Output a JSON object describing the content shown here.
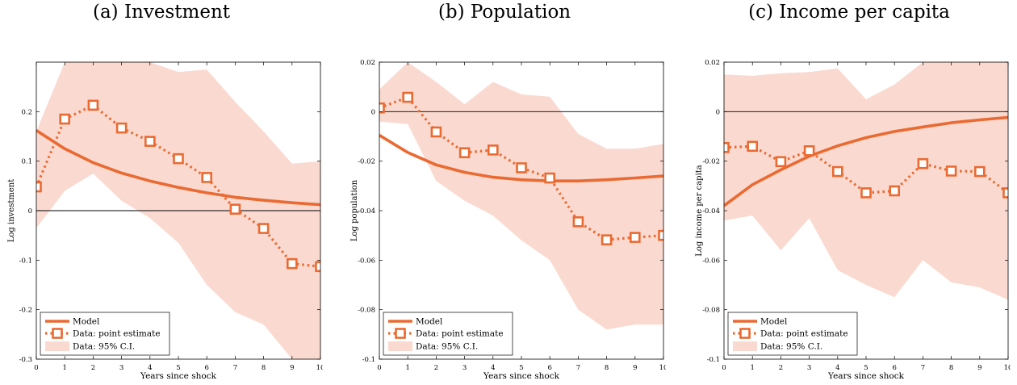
{
  "chart_data": [
    {
      "type": "line",
      "title": "(a) Investment",
      "xlabel": "Years since shock",
      "ylabel": "Log investment",
      "xlim": [
        0,
        10
      ],
      "ylim": [
        -0.3,
        0.3
      ],
      "x": [
        0,
        1,
        2,
        3,
        4,
        5,
        6,
        7,
        8,
        9,
        10
      ],
      "xticks": [
        "0",
        "1",
        "2",
        "3",
        "4",
        "5",
        "6",
        "7",
        "8",
        "9",
        "10"
      ],
      "yticks": [
        -0.3,
        -0.2,
        -0.1,
        0,
        0.1,
        0.2
      ],
      "ytick_labels": [
        "-0.3",
        "-0.2",
        "-0.1",
        "0",
        "0.1",
        "0.2"
      ],
      "series": [
        {
          "name": "Model",
          "style": "solid",
          "values": [
            0.162,
            0.125,
            0.097,
            0.076,
            0.06,
            0.047,
            0.036,
            0.027,
            0.021,
            0.016,
            0.012
          ]
        },
        {
          "name": "Data: point estimate",
          "style": "dotted-square",
          "values": [
            0.048,
            0.185,
            0.213,
            0.167,
            0.14,
            0.105,
            0.067,
            0.003,
            -0.036,
            -0.107,
            -0.113
          ]
        },
        {
          "name": "Data: 95% C.I.",
          "style": "band",
          "lower": [
            -0.035,
            0.04,
            0.075,
            0.02,
            -0.015,
            -0.065,
            -0.15,
            -0.205,
            -0.23,
            -0.3,
            -0.3
          ],
          "upper": [
            0.16,
            0.3,
            0.3,
            0.3,
            0.3,
            0.28,
            0.285,
            0.22,
            0.16,
            0.095,
            0.1
          ]
        }
      ],
      "legend_position": "bottom-left"
    },
    {
      "type": "line",
      "title": "(b) Population",
      "xlabel": "Years since shock",
      "ylabel": "Log population",
      "xlim": [
        0,
        10
      ],
      "ylim": [
        -0.1,
        0.02
      ],
      "x": [
        0,
        1,
        2,
        3,
        4,
        5,
        6,
        7,
        8,
        9,
        10
      ],
      "xticks": [
        "0",
        "1",
        "2",
        "3",
        "4",
        "5",
        "6",
        "7",
        "8",
        "9",
        "10"
      ],
      "yticks": [
        -0.1,
        -0.08,
        -0.06,
        -0.04,
        -0.02,
        0,
        0.02
      ],
      "ytick_labels": [
        "-0.1",
        "-0.08",
        "-0.06",
        "-0.04",
        "-0.02",
        "0",
        "0.02"
      ],
      "series": [
        {
          "name": "Model",
          "style": "solid",
          "values": [
            -0.0095,
            -0.0165,
            -0.0215,
            -0.0245,
            -0.0265,
            -0.0275,
            -0.028,
            -0.028,
            -0.0275,
            -0.0268,
            -0.026
          ]
        },
        {
          "name": "Data: point estimate",
          "style": "dotted-square",
          "values": [
            0.0015,
            0.0058,
            -0.0082,
            -0.0166,
            -0.0155,
            -0.0227,
            -0.0268,
            -0.0445,
            -0.0518,
            -0.0508,
            -0.05
          ]
        },
        {
          "name": "Data: 95% C.I.",
          "style": "band",
          "lower": [
            -0.004,
            -0.005,
            -0.028,
            -0.036,
            -0.042,
            -0.052,
            -0.06,
            -0.08,
            -0.088,
            -0.086,
            -0.086
          ],
          "upper": [
            0.009,
            0.02,
            0.012,
            0.003,
            0.012,
            0.007,
            0.006,
            -0.009,
            -0.015,
            -0.015,
            -0.013
          ]
        }
      ],
      "legend_position": "bottom-left"
    },
    {
      "type": "line",
      "title": "(c) Income per capita",
      "xlabel": "Years since shock",
      "ylabel": "Log income per capita",
      "xlim": [
        0,
        10
      ],
      "ylim": [
        -0.1,
        0.02
      ],
      "x": [
        0,
        1,
        2,
        3,
        4,
        5,
        6,
        7,
        8,
        9,
        10
      ],
      "xticks": [
        "0",
        "1",
        "2",
        "3",
        "4",
        "5",
        "6",
        "7",
        "8",
        "9",
        "10"
      ],
      "yticks": [
        -0.1,
        -0.08,
        -0.06,
        -0.04,
        -0.02,
        0,
        0.02
      ],
      "ytick_labels": [
        "-0.1",
        "-0.08",
        "-0.06",
        "-0.04",
        "-0.02",
        "0",
        "0.02"
      ],
      "series": [
        {
          "name": "Model",
          "style": "solid",
          "values": [
            -0.038,
            -0.0295,
            -0.0235,
            -0.018,
            -0.0138,
            -0.0105,
            -0.008,
            -0.0062,
            -0.0045,
            -0.0033,
            -0.0023
          ]
        },
        {
          "name": "Data: point estimate",
          "style": "dotted-square",
          "values": [
            -0.0145,
            -0.014,
            -0.0202,
            -0.0158,
            -0.0242,
            -0.0328,
            -0.032,
            -0.021,
            -0.024,
            -0.0242,
            -0.0328
          ]
        },
        {
          "name": "Data: 95% C.I.",
          "style": "band",
          "lower": [
            -0.044,
            -0.042,
            -0.056,
            -0.043,
            -0.064,
            -0.07,
            -0.075,
            -0.06,
            -0.069,
            -0.071,
            -0.076
          ],
          "upper": [
            0.015,
            0.0145,
            0.0155,
            0.016,
            0.0175,
            0.005,
            0.011,
            0.02,
            0.02,
            0.02,
            0.02
          ]
        }
      ],
      "legend_position": "bottom-left"
    }
  ],
  "colors": {
    "line": "#EA6A32",
    "band": "#FADAD0",
    "axis": "#000000"
  }
}
